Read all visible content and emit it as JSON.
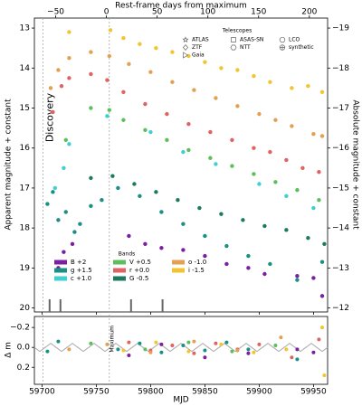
{
  "chart_data": [
    {
      "type": "scatter",
      "x2label": "Rest-frame days from maximum",
      "ylabel": "Apparent magnitude + constant",
      "y2label": "Absolute magnitude + constant",
      "xlim": [
        59693,
        59963
      ],
      "x2lim": [
        -71,
        218
      ],
      "x2ticks": [
        {
          "value": -50,
          "label": "−50"
        },
        0,
        50,
        100,
        150,
        200
      ],
      "ylim": [
        12.75,
        20.1
      ],
      "y_inverted": true,
      "yticks": [
        13,
        14,
        15,
        16,
        17,
        18,
        19,
        20
      ],
      "y2lim": [
        -19.25,
        -11.9
      ],
      "y2ticks": [
        {
          "value": -19,
          "label": "−19"
        },
        {
          "value": -18,
          "label": "−18"
        },
        {
          "value": -17,
          "label": "−17"
        },
        {
          "value": -16,
          "label": "−16"
        },
        {
          "value": -15,
          "label": "−15"
        },
        {
          "value": -14,
          "label": "−14"
        },
        {
          "value": -13,
          "label": "−13"
        },
        {
          "value": -12,
          "label": "−12"
        }
      ],
      "annotations": [
        {
          "text": "Discovery",
          "x": 59701
        },
        {
          "text": "Maximum",
          "x": 59762
        }
      ],
      "spectra": [
        59707,
        59717,
        59782,
        59811
      ],
      "legend_title": "Bands",
      "telescopes_title": "Telescopes",
      "telescopes": [
        {
          "name": "ATLAS",
          "marker": "star"
        },
        {
          "name": "ZTF",
          "marker": "diamond"
        },
        {
          "name": "Gaia",
          "marker": "triangle"
        },
        {
          "name": "ASAS-SN",
          "marker": "square"
        },
        {
          "name": "NTT",
          "marker": "hexagon"
        },
        {
          "name": "LCO",
          "marker": "circle"
        },
        {
          "name": "synthetic",
          "marker": "plus"
        }
      ],
      "series": [
        {
          "name": "B +2",
          "color": "#7b1fa2",
          "x": [
            59715,
            59720,
            59728,
            59780,
            59795,
            59810,
            59830,
            59850,
            59870,
            59890,
            59905,
            59935,
            59950,
            59958
          ],
          "values": [
            19.0,
            18.6,
            18.4,
            18.2,
            18.4,
            18.5,
            18.55,
            18.7,
            18.9,
            19.0,
            19.15,
            19.2,
            19.25,
            19.7
          ]
        },
        {
          "name": "g +1.5",
          "color": "#1a8f84",
          "x": [
            59705,
            59710,
            59715,
            59722,
            59730,
            59735,
            59745,
            59755,
            59770,
            59790,
            59810,
            59830,
            59850,
            59870,
            59890,
            59910,
            59935,
            59958
          ],
          "values": [
            17.4,
            17.1,
            17.8,
            17.6,
            18.1,
            17.9,
            17.45,
            17.3,
            17.0,
            17.2,
            17.6,
            17.9,
            18.2,
            18.45,
            18.7,
            18.9,
            19.3,
            18.85
          ]
        },
        {
          "name": "c +1.0",
          "color": "#3fd0d0",
          "x": [
            59712,
            59720,
            59725,
            59760,
            59800,
            59830,
            59860,
            59900,
            59925,
            59950
          ],
          "values": [
            17.0,
            16.5,
            15.9,
            15.2,
            15.6,
            16.1,
            16.4,
            16.9,
            17.2,
            17.5
          ]
        },
        {
          "name": "V +0.5",
          "color": "#5cbf5c",
          "x": [
            59722,
            59745,
            59762,
            59775,
            59795,
            59815,
            59835,
            59855,
            59875,
            59895,
            59915,
            59935,
            59955
          ],
          "values": [
            15.8,
            15.0,
            15.05,
            15.3,
            15.55,
            15.8,
            16.05,
            16.25,
            16.45,
            16.65,
            16.85,
            17.05,
            17.3
          ]
        },
        {
          "name": "r +0.0",
          "color": "#e06262",
          "x": [
            59710,
            59718,
            59725,
            59745,
            59760,
            59775,
            59795,
            59815,
            59835,
            59855,
            59875,
            59895,
            59910,
            59925,
            59940,
            59955
          ],
          "values": [
            15.1,
            14.45,
            14.25,
            14.15,
            14.3,
            14.6,
            14.9,
            15.15,
            15.4,
            15.6,
            15.8,
            16.0,
            16.1,
            16.3,
            16.5,
            16.6
          ]
        },
        {
          "name": "G -0.5",
          "color": "#1b7a60",
          "x": [
            59745,
            59765,
            59785,
            59805,
            59825,
            59845,
            59865,
            59885,
            59905,
            59925,
            59945,
            59960
          ],
          "values": [
            16.75,
            16.7,
            16.9,
            17.1,
            17.3,
            17.5,
            17.65,
            17.8,
            17.95,
            18.05,
            18.25,
            18.4
          ]
        },
        {
          "name": "o -1.0",
          "color": "#e3a052",
          "x": [
            59708,
            59715,
            59725,
            59745,
            59762,
            59780,
            59800,
            59820,
            59840,
            59860,
            59880,
            59900,
            59915,
            59930,
            59950,
            59958
          ],
          "values": [
            14.5,
            14.05,
            13.75,
            13.6,
            13.7,
            13.9,
            14.1,
            14.35,
            14.55,
            14.75,
            14.95,
            15.15,
            15.3,
            15.45,
            15.65,
            15.7
          ]
        },
        {
          "name": "i -1.5",
          "color": "#f2c530",
          "x": [
            59725,
            59763,
            59775,
            59790,
            59805,
            59820,
            59835,
            59850,
            59865,
            59880,
            59895,
            59910,
            59930,
            59945,
            59958
          ],
          "values": [
            13.1,
            13.05,
            13.25,
            13.4,
            13.5,
            13.6,
            13.7,
            13.85,
            14.0,
            14.05,
            14.2,
            14.35,
            14.5,
            14.45,
            14.6
          ]
        }
      ]
    },
    {
      "type": "residual",
      "xlabel": "MJD",
      "ylabel": "Δ m",
      "xticks": [
        59700,
        59750,
        59800,
        59850,
        59900,
        59950
      ],
      "ylim": [
        -0.31,
        0.37
      ],
      "y_inverted": true,
      "yticks": [
        {
          "value": -0.2,
          "label": "−0.2"
        },
        {
          "value": 0,
          "label": "0.0"
        },
        0.2
      ],
      "synthetic": {
        "color": "#aaaaaa",
        "x": [
          59693,
          59698,
          59703,
          59708,
          59713,
          59718,
          59723,
          59728,
          59733,
          59738,
          59743,
          59748,
          59753,
          59758,
          59763,
          59768,
          59773,
          59778,
          59783,
          59788,
          59793,
          59798,
          59803,
          59808,
          59813,
          59818,
          59823,
          59828,
          59833,
          59838,
          59843,
          59848,
          59853,
          59858,
          59863,
          59868,
          59873,
          59878,
          59883,
          59888,
          59893,
          59898,
          59903,
          59908,
          59913,
          59918,
          59923,
          59928,
          59933,
          59938,
          59943,
          59948,
          59953,
          59958,
          59963
        ],
        "values": [
          0,
          0.04,
          0,
          -0.04,
          0,
          0.04,
          0,
          -0.04,
          0,
          0.04,
          0,
          -0.04,
          0,
          0.04,
          0,
          -0.04,
          0,
          0.04,
          0,
          -0.04,
          0,
          0.04,
          0,
          -0.04,
          0,
          0.04,
          0,
          -0.04,
          0,
          0.04,
          0,
          -0.04,
          0,
          0.04,
          0,
          -0.04,
          0,
          0.04,
          0,
          -0.04,
          0,
          0.04,
          0,
          -0.04,
          0,
          0.04,
          0,
          -0.04,
          0,
          0.04,
          0,
          -0.04,
          0,
          0.04,
          0
        ]
      },
      "series": [
        {
          "color": "#e06262",
          "x": [
            59780,
            59800,
            59820,
            59840,
            59860,
            59880,
            59900,
            59930,
            59955
          ],
          "values": [
            -0.05,
            0.03,
            -0.02,
            0.06,
            -0.04,
            0.02,
            -0.03,
            0.1,
            -0.08
          ]
        },
        {
          "color": "#1a8f84",
          "x": [
            59705,
            59715,
            59770,
            59790,
            59810,
            59830,
            59850,
            59870,
            59890,
            59935
          ],
          "values": [
            0.04,
            -0.06,
            0.02,
            -0.04,
            0.05,
            -0.02,
            0.03,
            -0.05,
            0.02,
            0.12
          ]
        },
        {
          "color": "#f2c530",
          "x": [
            59775,
            59805,
            59835,
            59865,
            59895,
            59925,
            59958,
            59960
          ],
          "values": [
            0.03,
            -0.05,
            0.04,
            -0.03,
            0.05,
            0.02,
            -0.2,
            0.28
          ]
        },
        {
          "color": "#7b1fa2",
          "x": [
            59780,
            59810,
            59850,
            59890,
            59935,
            59950
          ],
          "values": [
            0.08,
            -0.03,
            0.1,
            0.06,
            0.02,
            0.05
          ]
        },
        {
          "color": "#5cbf5c",
          "x": [
            59745,
            59795,
            59835,
            59875,
            59915
          ],
          "values": [
            -0.04,
            0.02,
            -0.05,
            0.04,
            -0.02
          ]
        },
        {
          "color": "#e3a052",
          "x": [
            59725,
            59760,
            59800,
            59840,
            59880,
            59920
          ],
          "values": [
            0.02,
            -0.03,
            0.05,
            -0.06,
            0.03,
            -0.1
          ]
        }
      ]
    }
  ]
}
